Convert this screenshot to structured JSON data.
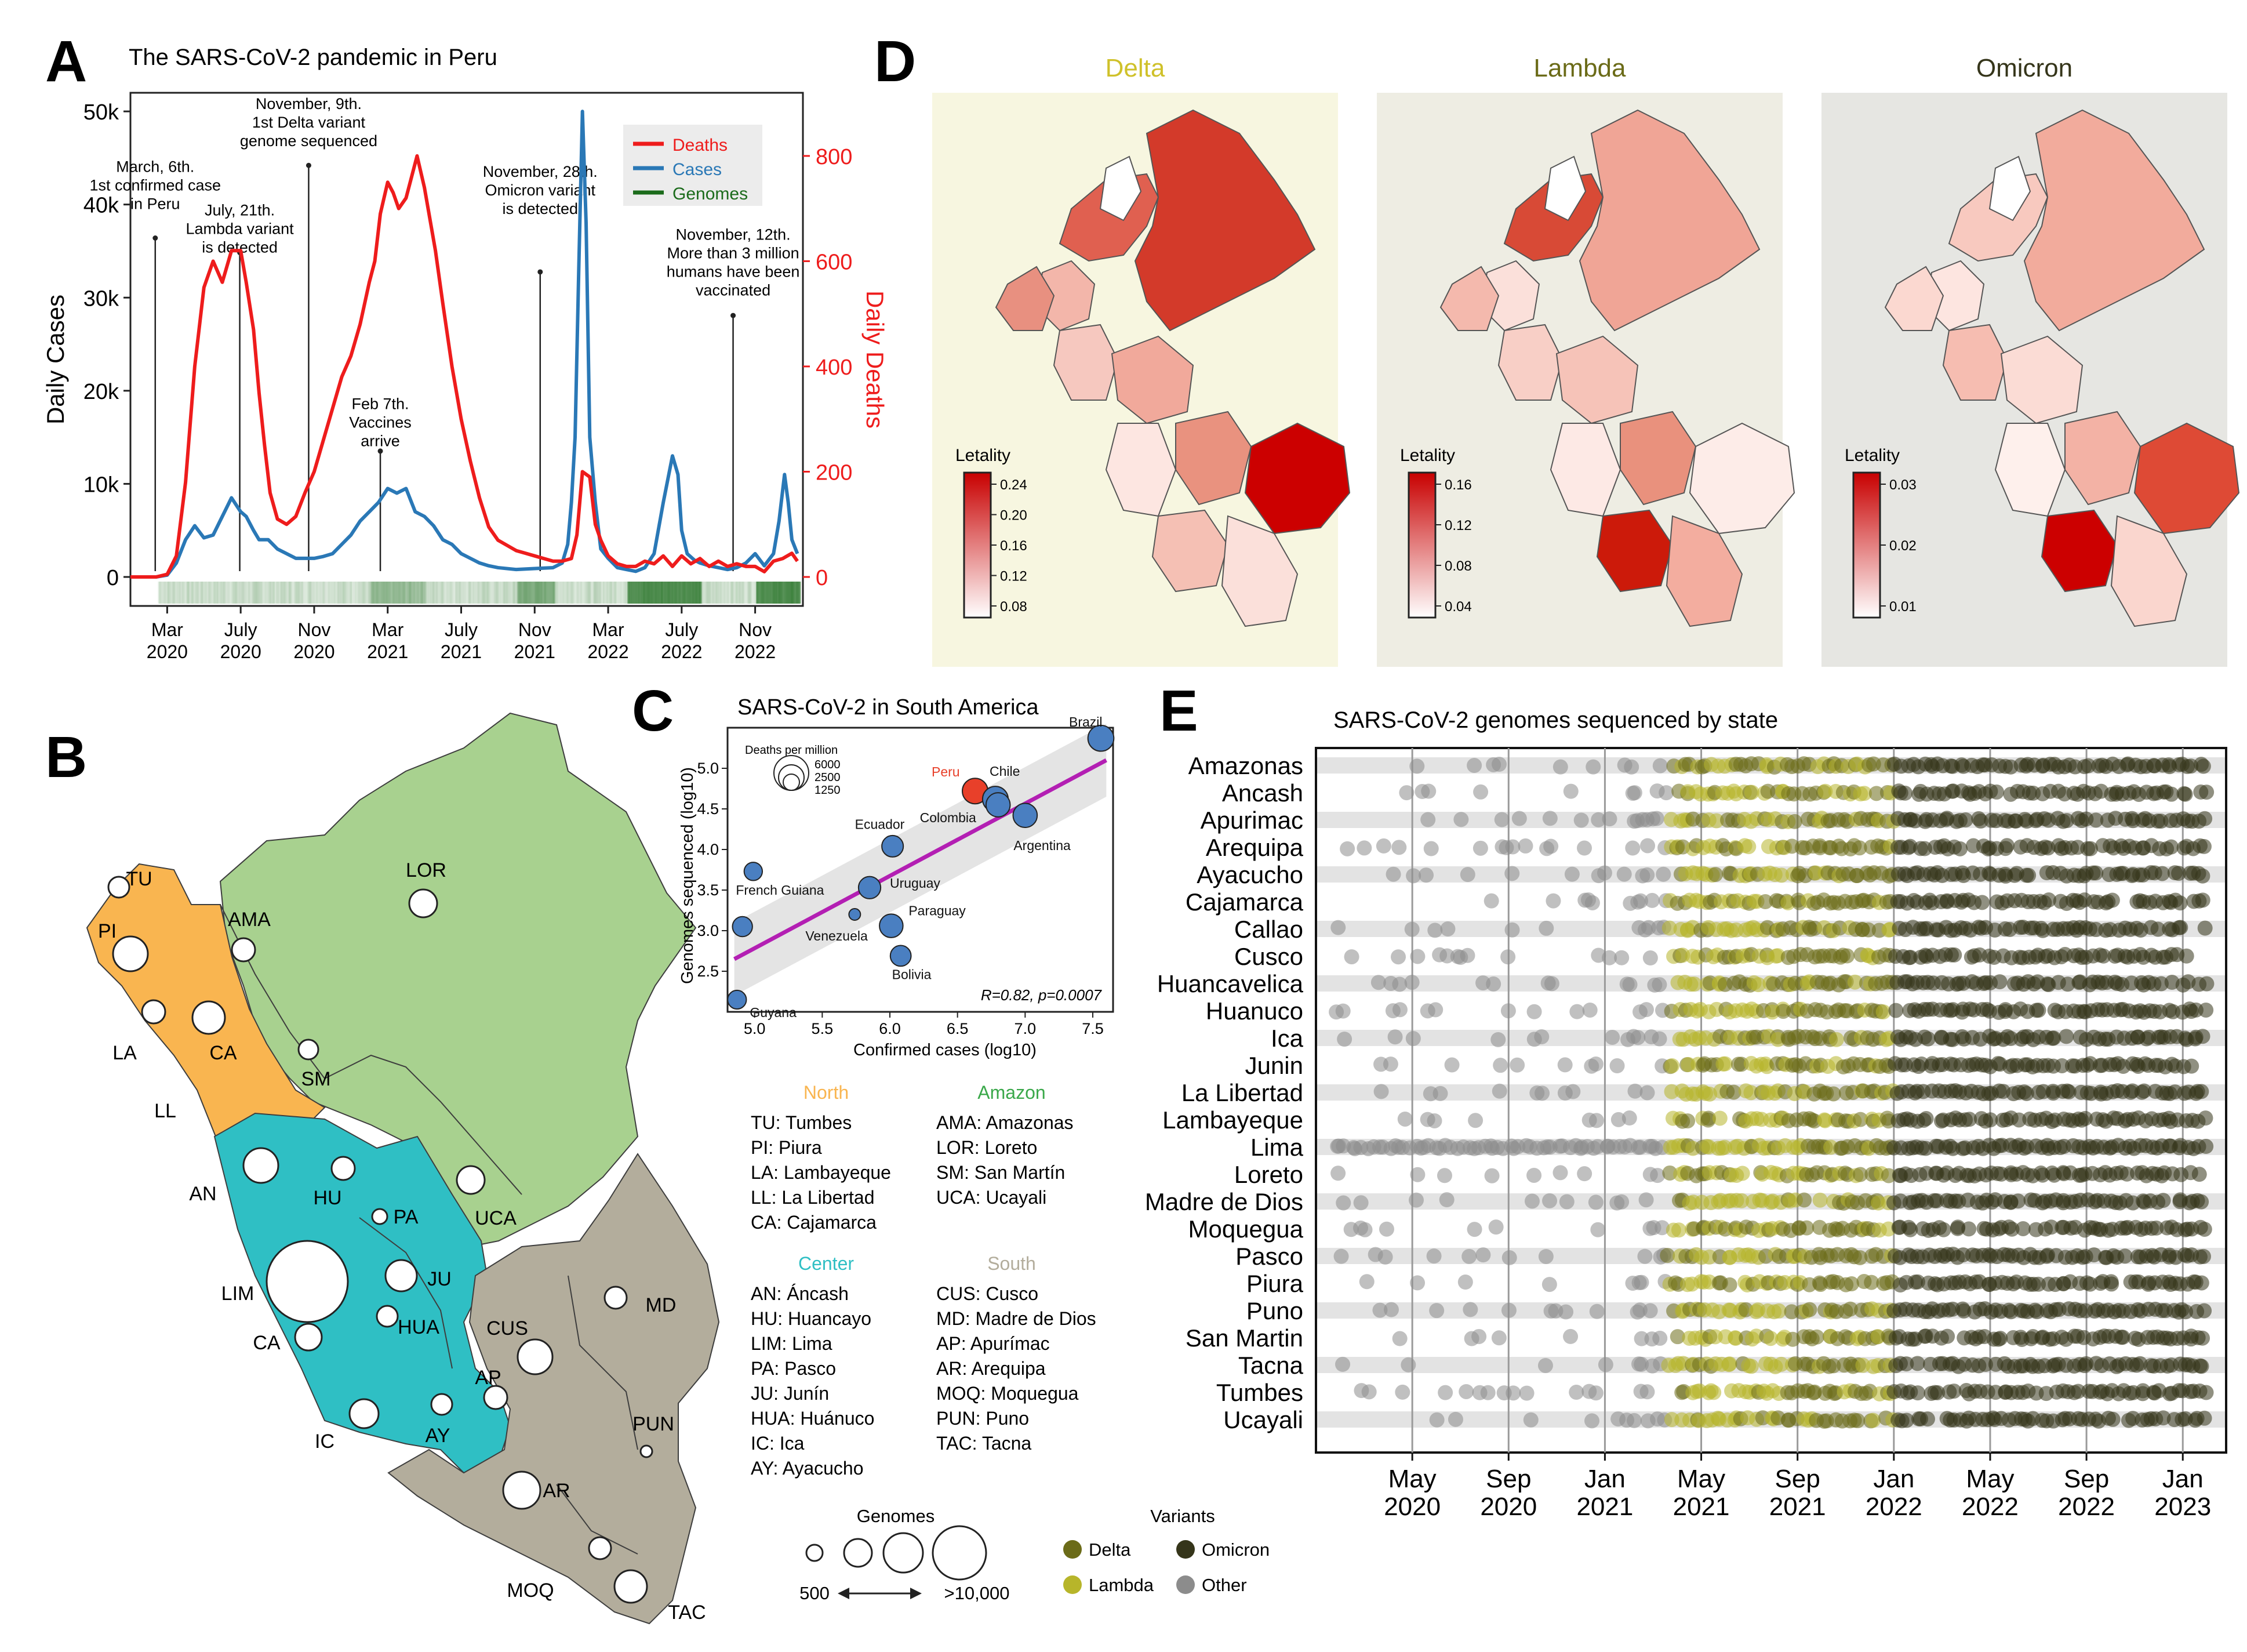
{
  "panels": {
    "a_letter": "A",
    "b_letter": "B",
    "c_letter": "C",
    "d_letter": "D",
    "e_letter": "E"
  },
  "colors": {
    "deaths": "#ee1c1c",
    "cases": "#2a78b6",
    "genomes": "#1b6b1b",
    "delta": "#6b6b18",
    "lambda": "#b7b52a",
    "omicron": "#35351a",
    "other": "#8c8c8c",
    "north": "#f9b550",
    "amazon": "#a8d18f",
    "center": "#2fbfc4",
    "south": "#b3ad9c",
    "delta_bg": "#f7f6e0",
    "lambda_bg": "#eeede3",
    "omicron_bg": "#e6e6e2",
    "letality_low": "#ffffff",
    "letality_high": "#c80000"
  },
  "chart_data": [
    {
      "id": "A",
      "type": "line",
      "title": "The SARS-CoV-2 pandemic in Peru",
      "ylabel": "Daily Cases",
      "y2label": "Daily Deaths",
      "ylim": [
        0,
        52000
      ],
      "y2lim": [
        0,
        920
      ],
      "y_ticks": [
        "0",
        "10k",
        "20k",
        "30k",
        "40k",
        "50k"
      ],
      "y_tick_values": [
        0,
        10000,
        20000,
        30000,
        40000,
        50000
      ],
      "y2_ticks": [
        "0",
        "200",
        "400",
        "600",
        "800"
      ],
      "y2_tick_values": [
        0,
        200,
        400,
        600,
        800
      ],
      "xlim": [
        0,
        36.6
      ],
      "x_ticks": [
        {
          "month": 2,
          "l1": "Mar",
          "l2": "2020"
        },
        {
          "month": 6,
          "l1": "July",
          "l2": "2020"
        },
        {
          "month": 10,
          "l1": "Nov",
          "l2": "2020"
        },
        {
          "month": 14,
          "l1": "Mar",
          "l2": "2021"
        },
        {
          "month": 18,
          "l1": "July",
          "l2": "2021"
        },
        {
          "month": 22,
          "l1": "Nov",
          "l2": "2021"
        },
        {
          "month": 26,
          "l1": "Mar",
          "l2": "2022"
        },
        {
          "month": 30,
          "l1": "July",
          "l2": "2022"
        },
        {
          "month": 34,
          "l1": "Nov",
          "l2": "2022"
        }
      ],
      "legend": [
        "Deaths",
        "Cases",
        "Genomes"
      ],
      "legend_placement": "top-right",
      "series": [
        {
          "name": "Deaths",
          "axis": "right",
          "x": [
            0,
            1.4,
            2.0,
            2.5,
            3.0,
            3.5,
            4.0,
            4.5,
            5.0,
            5.5,
            6.0,
            6.3,
            6.7,
            7.0,
            7.3,
            7.6,
            8.0,
            8.5,
            9.0,
            9.5,
            10.0,
            10.5,
            11.0,
            11.5,
            12.0,
            12.5,
            13.0,
            13.3,
            13.6,
            14.0,
            14.3,
            14.6,
            15.0,
            15.3,
            15.6,
            16.0,
            16.3,
            16.6,
            17.0,
            17.5,
            18.0,
            18.5,
            19.0,
            19.5,
            20.0,
            20.5,
            21.0,
            21.5,
            22.0,
            22.5,
            23.0,
            23.5,
            24.0,
            24.3,
            24.6,
            25.0,
            25.3,
            25.6,
            26.0,
            26.5,
            27.0,
            27.5,
            28.0,
            28.5,
            29.0,
            29.5,
            30.0,
            30.5,
            31.0,
            31.5,
            32.0,
            32.5,
            33.0,
            33.5,
            34.0,
            34.5,
            35.0,
            35.5,
            36.0,
            36.3
          ],
          "y": [
            0,
            0,
            5,
            40,
            180,
            400,
            550,
            600,
            560,
            620,
            620,
            560,
            470,
            350,
            250,
            160,
            110,
            100,
            115,
            160,
            200,
            260,
            320,
            380,
            420,
            480,
            560,
            600,
            690,
            750,
            730,
            700,
            720,
            760,
            800,
            740,
            680,
            620,
            520,
            400,
            300,
            220,
            150,
            95,
            70,
            60,
            50,
            45,
            40,
            35,
            30,
            30,
            35,
            80,
            200,
            190,
            100,
            70,
            40,
            25,
            20,
            20,
            30,
            25,
            40,
            20,
            40,
            25,
            35,
            20,
            30,
            20,
            25,
            20,
            20,
            10,
            30,
            35,
            45,
            30
          ]
        },
        {
          "name": "Cases",
          "axis": "left",
          "x": [
            0,
            1.4,
            2.0,
            2.5,
            3.0,
            3.5,
            4.0,
            4.5,
            5.0,
            5.5,
            6.0,
            6.3,
            6.7,
            7.0,
            7.5,
            8.0,
            8.5,
            9.0,
            9.5,
            10.0,
            10.5,
            11.0,
            11.5,
            12.0,
            12.5,
            13.0,
            13.5,
            14.0,
            14.5,
            15.0,
            15.5,
            16.0,
            16.5,
            17.0,
            17.5,
            18.0,
            18.5,
            19.0,
            19.5,
            20.0,
            21.0,
            22.0,
            23.0,
            23.5,
            23.8,
            24.0,
            24.2,
            24.4,
            24.6,
            24.8,
            25.0,
            25.3,
            25.6,
            26.0,
            26.5,
            27.0,
            27.5,
            28.0,
            28.5,
            29.0,
            29.5,
            29.8,
            30.0,
            30.3,
            30.7,
            31.0,
            31.5,
            32.0,
            32.5,
            33.0,
            33.5,
            34.0,
            34.5,
            35.0,
            35.3,
            35.6,
            35.8,
            36.0,
            36.3
          ],
          "y": [
            0,
            0,
            200,
            1500,
            4000,
            5500,
            4200,
            4500,
            6500,
            8500,
            7000,
            6500,
            5000,
            4000,
            4000,
            3000,
            2500,
            2000,
            2000,
            2000,
            2200,
            2500,
            3500,
            4500,
            6000,
            7000,
            8000,
            9500,
            9000,
            9500,
            7000,
            6500,
            5500,
            4000,
            3500,
            2500,
            2000,
            1500,
            1200,
            1000,
            800,
            900,
            1000,
            1500,
            3500,
            8000,
            15000,
            33000,
            50000,
            38000,
            15000,
            8000,
            3000,
            2000,
            1000,
            800,
            600,
            1000,
            2500,
            8000,
            13000,
            11000,
            5000,
            2500,
            1800,
            1500,
            1200,
            1000,
            800,
            1000,
            1500,
            2500,
            1200,
            2500,
            6000,
            11000,
            8000,
            4000,
            2500
          ]
        }
      ],
      "annotations": [
        {
          "month": 1.35,
          "l1": "March, 6th.",
          "l2": "1st confirmed case",
          "l3": "in Peru",
          "y_text": 0.13,
          "y_pin": 0.3
        },
        {
          "month": 5.95,
          "l1": "July, 21th.",
          "l2": "Lambda variant",
          "l3": "is detected",
          "y_text": 0.22,
          "y_pin": 0.33
        },
        {
          "month": 9.7,
          "l1": "November, 9th.",
          "l2": "1st Delta variant",
          "l3": "genome sequenced",
          "y_text": 0.0,
          "y_pin": 0.15
        },
        {
          "month": 13.6,
          "l1": "Feb 7th.",
          "l2": "Vaccines",
          "l3": "arrive",
          "y_text": 0.62,
          "y_pin": 0.74
        },
        {
          "month": 22.3,
          "l1": "November, 28th.",
          "l2": "Omicron variant",
          "l3": "is detected",
          "y_text": 0.14,
          "y_pin": 0.37
        },
        {
          "month": 32.8,
          "l1": "November, 12th.",
          "l2": "More than 3 million",
          "l3": "humans have been",
          "l4": "vaccinated",
          "y_text": 0.27,
          "y_pin": 0.46
        }
      ]
    },
    {
      "id": "C",
      "type": "scatter",
      "title": "SARS-CoV-2 in South America",
      "xlabel": "Confirmed cases (log10)",
      "ylabel": "Genomes sequenced (log10)",
      "xlim": [
        4.8,
        7.65
      ],
      "ylim": [
        2.0,
        5.5
      ],
      "x_ticks": [
        "5.0",
        "5.5",
        "6.0",
        "6.5",
        "7.0",
        "7.5"
      ],
      "x_tick_values": [
        5.0,
        5.5,
        6.0,
        6.5,
        7.0,
        7.5
      ],
      "y_ticks": [
        "2.5",
        "3.0",
        "3.5",
        "4.0",
        "4.5",
        "5.0"
      ],
      "y_tick_values": [
        2.5,
        3.0,
        3.5,
        4.0,
        4.5,
        5.0
      ],
      "size_legend_title": "Deaths per million",
      "size_legend": [
        "6000",
        "2500",
        "1250"
      ],
      "stat": "R=0.82, p=0.0007",
      "fit": {
        "x": [
          4.85,
          7.6
        ],
        "y": [
          2.65,
          5.1
        ]
      },
      "points": [
        {
          "name": "Brazil",
          "x": 7.56,
          "y": 5.37,
          "size": 3400
        },
        {
          "name": "Peru",
          "x": 6.63,
          "y": 4.72,
          "size": 6000,
          "highlight": true
        },
        {
          "name": "Chile",
          "x": 6.78,
          "y": 4.62,
          "size": 3300
        },
        {
          "name": "Colombia",
          "x": 6.8,
          "y": 4.55,
          "size": 2800
        },
        {
          "name": "Argentina",
          "x": 7.0,
          "y": 4.42,
          "size": 2800
        },
        {
          "name": "Ecuador",
          "x": 6.02,
          "y": 4.04,
          "size": 2000
        },
        {
          "name": "French Guiana",
          "x": 4.99,
          "y": 3.73,
          "size": 1200
        },
        {
          "name": "Uruguay",
          "x": 5.85,
          "y": 3.53,
          "size": 2200
        },
        {
          "name": "Paraguay",
          "x": 6.01,
          "y": 3.06,
          "size": 2600
        },
        {
          "name": "Venezuela",
          "x": 5.74,
          "y": 3.2,
          "size": 200
        },
        {
          "name": "Bolivia",
          "x": 6.08,
          "y": 2.69,
          "size": 1800
        },
        {
          "name": "",
          "x": 4.91,
          "y": 3.05,
          "size": 1600
        },
        {
          "name": "Guyana",
          "x": 4.87,
          "y": 2.15,
          "size": 1300
        }
      ]
    },
    {
      "id": "E",
      "type": "scatter",
      "title": "SARS-CoV-2 genomes sequenced by state",
      "x_ticks": [
        {
          "month": 4,
          "l1": "May",
          "l2": "2020"
        },
        {
          "month": 8,
          "l1": "Sep",
          "l2": "2020"
        },
        {
          "month": 12,
          "l1": "Jan",
          "l2": "2021"
        },
        {
          "month": 16,
          "l1": "May",
          "l2": "2021"
        },
        {
          "month": 20,
          "l1": "Sep",
          "l2": "2021"
        },
        {
          "month": 24,
          "l1": "Jan",
          "l2": "2022"
        },
        {
          "month": 28,
          "l1": "May",
          "l2": "2022"
        },
        {
          "month": 32,
          "l1": "Sep",
          "l2": "2022"
        },
        {
          "month": 36,
          "l1": "Jan",
          "l2": "2023"
        }
      ],
      "xlim": [
        0,
        37.8
      ],
      "states": [
        "Amazonas",
        "Ancash",
        "Apurimac",
        "Arequipa",
        "Ayacucho",
        "Cajamarca",
        "Callao",
        "Cusco",
        "Huancavelica",
        "Huanuco",
        "Ica",
        "Junin",
        "La Libertad",
        "Lambayeque",
        "Lima",
        "Loreto",
        "Madre de Dios",
        "Moquegua",
        "Pasco",
        "Piura",
        "Puno",
        "San Martin",
        "Tacna",
        "Tumbes",
        "Ucayali"
      ],
      "variants": [
        "Delta",
        "Omicron",
        "Lambda",
        "Other"
      ],
      "variant_periods": [
        {
          "variant": "Other",
          "from": 0,
          "to": 14.5
        },
        {
          "variant": "Lambda",
          "from": 14.5,
          "to": 19.5
        },
        {
          "variant": "Delta",
          "from": 19.5,
          "to": 24
        },
        {
          "variant": "Omicron",
          "from": 24,
          "to": 37
        }
      ]
    }
  ],
  "panel_a_legend": {
    "deaths": "Deaths",
    "cases": "Cases",
    "genomes": "Genomes"
  },
  "panel_d": {
    "maps": [
      {
        "title": "Delta",
        "legend_title": "Letality",
        "ticks": [
          "0.24",
          "0.20",
          "0.16",
          "0.12",
          "0.08"
        ]
      },
      {
        "title": "Lambda",
        "legend_title": "Letality",
        "ticks": [
          "0.16",
          "0.12",
          "0.08",
          "0.04"
        ]
      },
      {
        "title": "Omicron",
        "legend_title": "Letality",
        "ticks": [
          "0.03",
          "0.02",
          "0.01"
        ]
      }
    ]
  },
  "panel_b": {
    "map_labels": [
      "TU",
      "PI",
      "LA",
      "LL",
      "CA",
      "AMA",
      "LOR",
      "SM",
      "AN",
      "HU",
      "PA",
      "UCA",
      "LIM",
      "CA",
      "JU",
      "HUA",
      "CUS",
      "MD",
      "AP",
      "IC",
      "AY",
      "AR",
      "PUN",
      "MOQ",
      "TAC"
    ],
    "regions": [
      {
        "name": "North",
        "items": [
          "TU: Tumbes",
          "PI: Piura",
          "LA: Lambayeque",
          "LL: La Libertad",
          "CA: Cajamarca"
        ]
      },
      {
        "name": "Amazon",
        "items": [
          "AMA: Amazonas",
          "LOR: Loreto",
          "SM: San Martín",
          "UCA: Ucayali"
        ]
      },
      {
        "name": "Center",
        "items": [
          "AN: Áncash",
          "HU: Huancayo",
          "LIM: Lima",
          "PA: Pasco",
          "JU: Junín",
          "HUA: Huánuco",
          "IC: Ica",
          "AY: Ayacucho"
        ]
      },
      {
        "name": "South",
        "items": [
          "CUS: Cusco",
          "MD: Madre de Dios",
          "AP: Apurímac",
          "AR: Arequipa",
          "MOQ: Moquegua",
          "PUN: Puno",
          "TAC: Tacna"
        ]
      }
    ],
    "genomes_legend": {
      "title": "Genomes",
      "min": "500",
      "max": ">10,000"
    },
    "variants_legend": {
      "title": "Variants",
      "items": [
        "Delta",
        "Omicron",
        "Lambda",
        "Other"
      ]
    }
  }
}
